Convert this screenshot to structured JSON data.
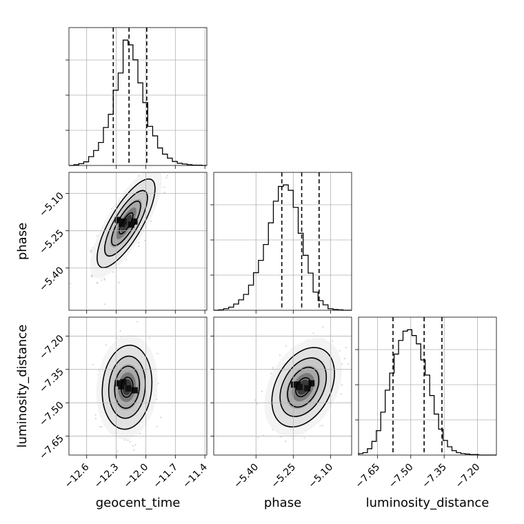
{
  "chart_data": {
    "type": "corner",
    "parameters": [
      "geocent_time",
      "phase",
      "luminosity_distance"
    ],
    "ranges": {
      "geocent_time": [
        -12.78,
        -11.38
      ],
      "phase": [
        -5.57,
        -5.015
      ],
      "luminosity_distance": [
        -7.735,
        -7.115
      ]
    },
    "ticks": {
      "geocent_time": [
        -12.6,
        -12.3,
        -12.0,
        -11.7,
        -11.4
      ],
      "phase": [
        -5.4,
        -5.25,
        -5.1
      ],
      "luminosity_distance": [
        -7.65,
        -7.5,
        -7.35,
        -7.2
      ]
    },
    "tick_labels": {
      "geocent_time": [
        "−12.6",
        "−12.3",
        "−12.0",
        "−11.7",
        "−11.4"
      ],
      "phase": [
        "−5.40",
        "−5.25",
        "−5.10"
      ],
      "luminosity_distance": [
        "−7.65",
        "−7.50",
        "−7.35",
        "−7.20"
      ]
    },
    "quantiles": {
      "geocent_time": [
        -12.33,
        -12.17,
        -11.99
      ],
      "phase": [
        -5.296,
        -5.216,
        -5.146
      ],
      "luminosity_distance": [
        -7.58,
        -7.44,
        -7.36
      ]
    },
    "histograms": {
      "geocent_time": {
        "edges": [
          -12.78,
          -12.73,
          -12.68,
          -12.63,
          -12.58,
          -12.53,
          -12.48,
          -12.43,
          -12.38,
          -12.33,
          -12.28,
          -12.23,
          -12.18,
          -12.13,
          -12.08,
          -12.03,
          -11.98,
          -11.93,
          -11.88,
          -11.83,
          -11.78,
          -11.73,
          -11.68,
          -11.63,
          -11.58,
          -11.53,
          -11.48,
          -11.43,
          -11.38
        ],
        "counts": [
          0,
          2,
          5,
          10,
          24,
          41,
          63,
          104,
          140,
          206,
          253,
          343,
          330,
          289,
          226,
          172,
          107,
          81,
          48,
          31,
          20,
          11,
          6,
          4,
          2,
          1,
          1,
          0
        ]
      },
      "phase": {
        "edges": [
          -5.57,
          -5.55,
          -5.53,
          -5.51,
          -5.49,
          -5.47,
          -5.45,
          -5.43,
          -5.41,
          -5.39,
          -5.37,
          -5.35,
          -5.33,
          -5.31,
          -5.29,
          -5.27,
          -5.25,
          -5.23,
          -5.21,
          -5.19,
          -5.17,
          -5.15,
          -5.13,
          -5.11,
          -5.09,
          -5.07,
          -5.05,
          -5.03,
          -5.015
        ],
        "counts": [
          0,
          1,
          4,
          8,
          16,
          27,
          41,
          65,
          97,
          129,
          170,
          226,
          282,
          320,
          324,
          310,
          266,
          199,
          142,
          96,
          47,
          25,
          14,
          4,
          2,
          1,
          0,
          0
        ]
      },
      "luminosity_distance": {
        "edges": [
          -7.735,
          -7.715,
          -7.695,
          -7.675,
          -7.655,
          -7.635,
          -7.615,
          -7.595,
          -7.575,
          -7.555,
          -7.535,
          -7.515,
          -7.495,
          -7.475,
          -7.455,
          -7.435,
          -7.415,
          -7.395,
          -7.375,
          -7.355,
          -7.335,
          -7.315,
          -7.295,
          -7.275,
          -7.255,
          -7.235,
          -7.215,
          -7.195,
          -7.175,
          -7.155,
          -7.135,
          -7.115
        ],
        "counts": [
          3,
          5,
          13,
          28,
          50,
          88,
          133,
          168,
          207,
          235,
          254,
          257,
          245,
          228,
          195,
          164,
          122,
          84,
          53,
          30,
          17,
          9,
          5,
          3,
          2,
          1,
          1,
          0,
          0,
          0,
          0
        ]
      }
    },
    "pairs": [
      {
        "x": "geocent_time",
        "y": "phase",
        "center": [
          -12.2,
          -5.22
        ],
        "sd": [
          0.14,
          0.085
        ],
        "corr": 0.78
      },
      {
        "x": "geocent_time",
        "y": "luminosity_distance",
        "center": [
          -12.19,
          -7.43
        ],
        "sd": [
          0.12,
          0.09
        ],
        "corr": 0.1
      },
      {
        "x": "phase",
        "y": "luminosity_distance",
        "center": [
          -5.21,
          -7.43
        ],
        "sd": [
          0.06,
          0.085
        ],
        "corr": 0.35
      }
    ],
    "grid": true
  }
}
